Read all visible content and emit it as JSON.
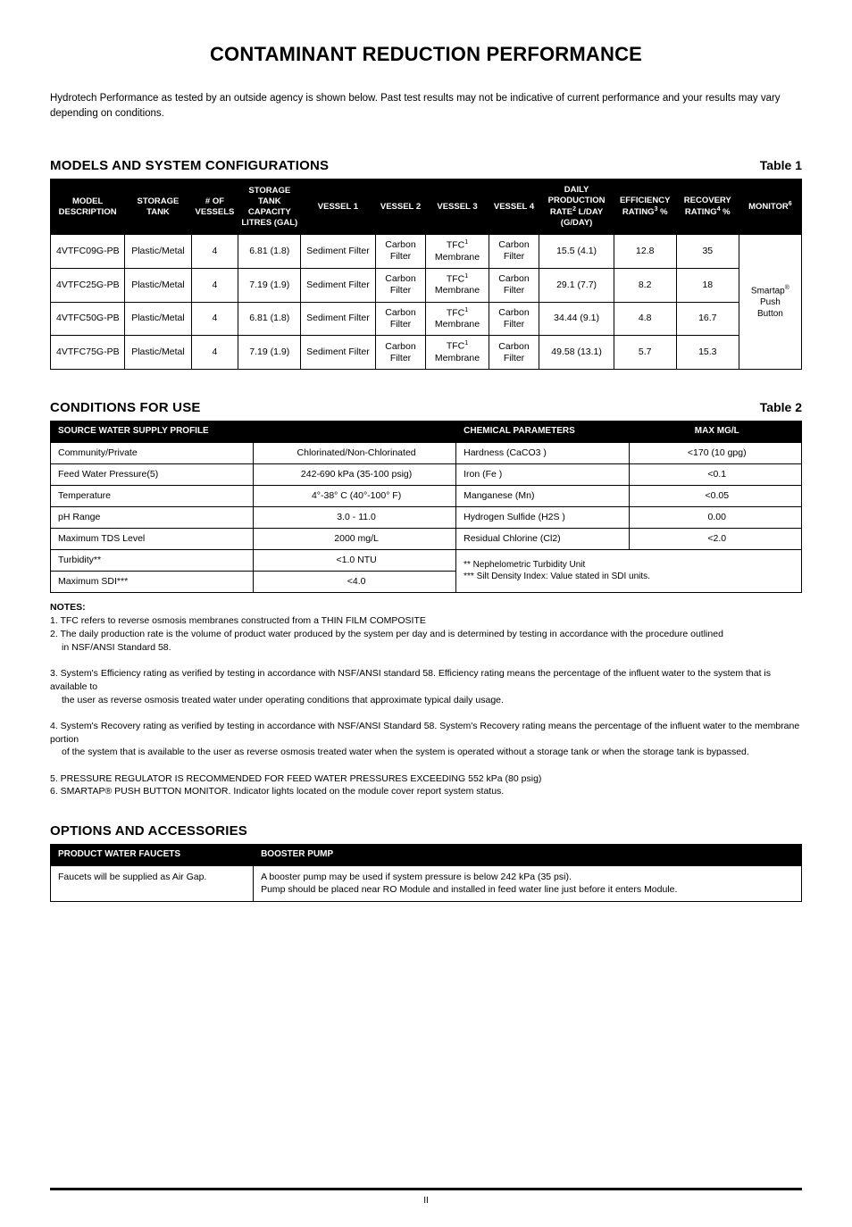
{
  "page": {
    "title": "CONTAMINANT REDUCTION PERFORMANCE",
    "intro": "Hydrotech Performance as tested by an outside agency is shown below.  Past test results may not be indicative of current performance and your results may vary depending on conditions.",
    "footer_page": "II"
  },
  "section1": {
    "title": "MODELS AND SYSTEM CONFIGURATIONS",
    "table_label": "Table 1",
    "headers": {
      "model": "MODEL DESCRIPTION",
      "tank": "STORAGE TANK",
      "vessels": "# OF VESSELS",
      "capacity": "STORAGE TANK CAPACITY LITRES (GAL)",
      "v1": "VESSEL 1",
      "v2": "VESSEL 2",
      "v3": "VESSEL 3",
      "v4": "VESSEL 4",
      "rate_pre": "DAILY PRODUCTION RATE",
      "rate_post": " L/DAY (G/DAY)",
      "eff_pre": "EFFICIENCY RATING",
      "eff_post": " %",
      "rec_pre": "RECOVERY RATING",
      "rec_post": " %",
      "mon_pre": "MONITOR"
    },
    "rows": [
      {
        "model": "4VTFC09G-PB",
        "tank": "Plastic/Metal",
        "vessels": "4",
        "capacity": "6.81 (1.8)",
        "v1": "Sediment Filter",
        "v2": "Carbon Filter",
        "v3a": "TFC",
        "v3b": " Membrane",
        "v4": "Carbon Filter",
        "rate": "15.5 (4.1)",
        "eff": "12.8",
        "rec": "35"
      },
      {
        "model": "4VTFC25G-PB",
        "tank": "Plastic/Metal",
        "vessels": "4",
        "capacity": "7.19 (1.9)",
        "v1": "Sediment Filter",
        "v2": "Carbon Filter",
        "v3a": "TFC",
        "v3b": " Membrane",
        "v4": "Carbon Filter",
        "rate": "29.1 (7.7)",
        "eff": "8.2",
        "rec": "18"
      },
      {
        "model": "4VTFC50G-PB",
        "tank": "Plastic/Metal",
        "vessels": "4",
        "capacity": "6.81 (1.8)",
        "v1": "Sediment Filter",
        "v2": "Carbon Filter",
        "v3a": "TFC",
        "v3b": " Membrane",
        "v4": "Carbon Filter",
        "rate": "34.44 (9.1)",
        "eff": "4.8",
        "rec": "16.7"
      },
      {
        "model": "4VTFC75G-PB",
        "tank": "Plastic/Metal",
        "vessels": "4",
        "capacity": "7.19 (1.9)",
        "v1": "Sediment Filter",
        "v2": "Carbon Filter",
        "v3a": "TFC",
        "v3b": " Membrane",
        "v4": "Carbon Filter",
        "rate": "49.58 (13.1)",
        "eff": "5.7",
        "rec": "15.3"
      }
    ],
    "monitor_text": "Smartap® Push Button"
  },
  "section2": {
    "title": "CONDITIONS FOR USE",
    "table_label": "Table 2",
    "headers": {
      "profile": "SOURCE WATER SUPPLY PROFILE",
      "chem": "CHEMICAL PARAMETERS",
      "max": "MAX MG/L"
    },
    "left": [
      {
        "k": "Community/Private",
        "v": "Chlorinated/Non-Chlorinated"
      },
      {
        "k": "Feed Water Pressure(5)",
        "v": "242-690 kPa (35-100 psig)"
      },
      {
        "k": "Temperature",
        "v": "4°-38° C (40°-100° F)"
      },
      {
        "k": "pH Range",
        "v": "3.0 - 11.0"
      },
      {
        "k": "Maximum TDS Level",
        "v": "2000 mg/L"
      },
      {
        "k": "Turbidity**",
        "v": "<1.0 NTU"
      },
      {
        "k": "Maximum SDI***",
        "v": "<4.0"
      }
    ],
    "right": [
      {
        "k": "Hardness (CaCO3 )",
        "v": "<170 (10 gpg)"
      },
      {
        "k": "Iron  (Fe )",
        "v": "<0.1"
      },
      {
        "k": "Manganese (Mn)",
        "v": "<0.05"
      },
      {
        "k": "Hydrogen Sulfide (H2S )",
        "v": "0.00"
      },
      {
        "k": "Residual Chlorine (Cl2)",
        "v": "<2.0"
      }
    ],
    "right_notes": {
      "a": "** Nephelometric Turbidity Unit",
      "b": "*** Silt Density Index:  Value stated in SDI units."
    },
    "notes_title": "NOTES:",
    "notes": [
      "1. TFC refers to reverse osmosis membranes constructed from a THIN FILM COMPOSITE",
      "2. The daily production rate is the volume of product water produced by the system per day and is determined by testing in accordance with the procedure outlined",
      "in NSF/ANSI Standard 58.",
      "3. System's Efficiency rating as verified by testing in accordance with NSF/ANSI standard 58. Efficiency rating means the percentage of the influent water to the system that is available to",
      "the user as reverse osmosis treated water under operating conditions that approximate typical daily usage.",
      "4. System's Recovery rating as verified by testing in accordance with NSF/ANSI Standard 58. System's Recovery rating means the percentage of the influent water to the membrane portion",
      "of the system that is available to the user as reverse osmosis treated water when the system is operated without a storage tank or when the storage tank is bypassed.",
      "5. PRESSURE REGULATOR IS RECOMMENDED FOR FEED WATER PRESSURES EXCEEDING 552 kPa (80 psig)",
      "6. SMARTAP® PUSH BUTTON MONITOR. Indicator lights located on the module cover report system status."
    ],
    "note_indent_idx": [
      2,
      4,
      6
    ]
  },
  "section3": {
    "title": "OPTIONS AND ACCESSORIES",
    "headers": {
      "a": "PRODUCT WATER FAUCETS",
      "b": "BOOSTER PUMP"
    },
    "row": {
      "a": "Faucets will be supplied as Air Gap.",
      "b": "A booster pump may be used if system pressure is below 242 kPa (35 psi).\nPump should be placed near RO Module and installed in feed water line just before it enters Module."
    }
  }
}
